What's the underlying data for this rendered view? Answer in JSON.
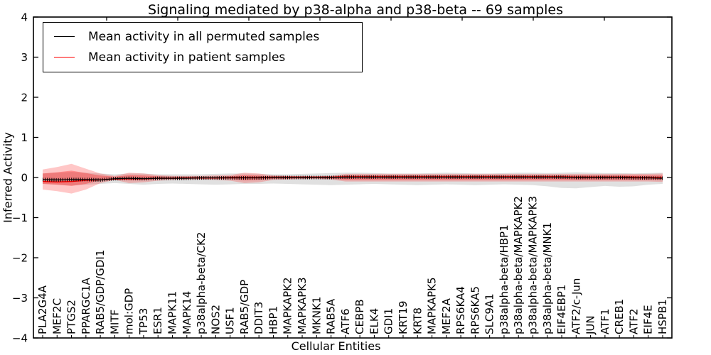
{
  "title": "Signaling mediated by p38-alpha and p38-beta -- 69 samples",
  "legend": [
    {
      "label": "Mean activity in all permuted samples",
      "color": "#000000"
    },
    {
      "label": "Mean activity in patient samples",
      "color": "#ff0000"
    }
  ],
  "colors": {
    "permuted_line": "#000000",
    "patient_line": "#ff0000",
    "patient_band": "#ff0000",
    "permuted_band": "#999999",
    "frame": "#000000"
  },
  "chart_data": {
    "type": "area",
    "title": "Signaling mediated by p38-alpha and p38-beta -- 69 samples",
    "xlabel": "Cellular Entities",
    "ylabel": "Inferred Activity",
    "ylim": [
      -4,
      4
    ],
    "grid": false,
    "legend_position": "upper left",
    "yticks": [
      {
        "v": 4,
        "label": "4"
      },
      {
        "v": 3,
        "label": "3"
      },
      {
        "v": 2,
        "label": "2"
      },
      {
        "v": 1,
        "label": "1"
      },
      {
        "v": 0,
        "label": "0"
      },
      {
        "v": -1,
        "label": "−1"
      },
      {
        "v": -2,
        "label": "−2"
      },
      {
        "v": -3,
        "label": "−3"
      },
      {
        "v": -4,
        "label": "−4"
      }
    ],
    "categories": [
      "PLA2G4A",
      "MEF2C",
      "PTGS2",
      "PPARGC1A",
      "RAB5/GDP/GDI1",
      "MITF",
      "mol:GDP",
      "TP53",
      "ESR1",
      "MAPK11",
      "MAPK14",
      "p38alpha-beta/CK2",
      "NOS2",
      "USF1",
      "RAB5/GDP",
      "DDIT3",
      "HBP1",
      "MAPKAPK2",
      "MAPKAPK3",
      "MKNK1",
      "RAB5A",
      "ATF6",
      "CEBPB",
      "ELK4",
      "GDI1",
      "KRT19",
      "KRT8",
      "MAPKAPK5",
      "MEF2A",
      "RPS6KA4",
      "RPS6KA5",
      "SLC9A1",
      "p38alpha-beta/HBP1",
      "p38alpha-beta/MAPKAPK2",
      "p38alpha-beta/MAPKAPK3",
      "p38alpha-beta/MNK1",
      "EIF4EBP1",
      "ATF2/c-Jun",
      "JUN",
      "ATF1",
      "CREB1",
      "ATF2",
      "EIF4E",
      "HSPB1"
    ],
    "series": [
      {
        "name": "Mean activity in all permuted samples",
        "kind": "line",
        "color": "#000000",
        "width": 1.2,
        "markers": true,
        "values": [
          -0.05,
          -0.06,
          -0.05,
          -0.05,
          -0.06,
          -0.03,
          -0.02,
          -0.03,
          -0.02,
          -0.02,
          -0.02,
          -0.01,
          -0.01,
          -0.01,
          -0.01,
          -0.01,
          0,
          0,
          0,
          0,
          0,
          0.01,
          0.01,
          0.01,
          0.01,
          0.01,
          0.01,
          0.01,
          0.01,
          0.01,
          0.01,
          0.01,
          0.01,
          0.01,
          0.01,
          0.01,
          0.01,
          0,
          0,
          0,
          0,
          -0.01,
          -0.01,
          -0.02
        ]
      },
      {
        "name": "Mean activity in patient samples",
        "kind": "line",
        "color": "#ff0000",
        "width": 1.5,
        "markers": false,
        "values": [
          -0.1,
          -0.11,
          -0.1,
          -0.07,
          -0.06,
          -0.04,
          -0.03,
          -0.03,
          -0.02,
          -0.02,
          -0.01,
          -0.01,
          -0.01,
          0,
          0,
          0,
          0.01,
          0.01,
          0.01,
          0.01,
          0.01,
          0.02,
          0.02,
          0.02,
          0.02,
          0.02,
          0.02,
          0.02,
          0.02,
          0.02,
          0.02,
          0.02,
          0.02,
          0.02,
          0.02,
          0.02,
          0.02,
          0.01,
          0.01,
          0.01,
          0.01,
          0.01,
          0,
          0
        ]
      },
      {
        "name": "permuted-sample-range",
        "kind": "band",
        "color": "#999999",
        "opacity": 0.3,
        "upper": [
          0.1,
          0.12,
          0.14,
          0.12,
          0.1,
          0.08,
          0.1,
          0.1,
          0.08,
          0.08,
          0.08,
          0.08,
          0.09,
          0.1,
          0.1,
          0.09,
          0.08,
          0.08,
          0.09,
          0.1,
          0.11,
          0.12,
          0.12,
          0.11,
          0.1,
          0.1,
          0.1,
          0.11,
          0.12,
          0.11,
          0.1,
          0.1,
          0.11,
          0.12,
          0.12,
          0.11,
          0.12,
          0.13,
          0.12,
          0.11,
          0.11,
          0.1,
          0.11,
          0.12
        ],
        "lower": [
          -0.16,
          -0.18,
          -0.2,
          -0.18,
          -0.16,
          -0.14,
          -0.16,
          -0.18,
          -0.16,
          -0.15,
          -0.16,
          -0.17,
          -0.18,
          -0.17,
          -0.16,
          -0.16,
          -0.15,
          -0.16,
          -0.17,
          -0.18,
          -0.19,
          -0.18,
          -0.17,
          -0.16,
          -0.17,
          -0.18,
          -0.19,
          -0.18,
          -0.17,
          -0.18,
          -0.19,
          -0.18,
          -0.17,
          -0.18,
          -0.19,
          -0.22,
          -0.26,
          -0.27,
          -0.24,
          -0.21,
          -0.23,
          -0.22,
          -0.18,
          -0.16
        ]
      },
      {
        "name": "patient-sample-range",
        "kind": "band",
        "color": "#ff0000",
        "opacity": 0.22,
        "upper": [
          0.2,
          0.26,
          0.34,
          0.22,
          0.1,
          0.04,
          0.12,
          0.1,
          0.06,
          0.04,
          0.04,
          0.04,
          0.05,
          0.06,
          0.12,
          0.1,
          0.05,
          0.04,
          0.03,
          0.03,
          0.04,
          0.09,
          0.09,
          0.09,
          0.09,
          0.09,
          0.09,
          0.09,
          0.09,
          0.09,
          0.09,
          0.09,
          0.09,
          0.09,
          0.09,
          0.09,
          0.09,
          0.09,
          0.09,
          0.09,
          0.09,
          0.09,
          0.09,
          0.1
        ],
        "lower": [
          -0.3,
          -0.34,
          -0.4,
          -0.3,
          -0.14,
          -0.06,
          -0.14,
          -0.12,
          -0.08,
          -0.06,
          -0.05,
          -0.05,
          -0.06,
          -0.08,
          -0.14,
          -0.12,
          -0.06,
          -0.05,
          -0.04,
          -0.04,
          -0.05,
          -0.1,
          -0.1,
          -0.1,
          -0.1,
          -0.1,
          -0.1,
          -0.1,
          -0.1,
          -0.1,
          -0.1,
          -0.1,
          -0.1,
          -0.1,
          -0.1,
          -0.1,
          -0.1,
          -0.1,
          -0.1,
          -0.1,
          -0.1,
          -0.1,
          -0.1,
          -0.11
        ]
      },
      {
        "name": "patient-sample-inner-band",
        "kind": "band",
        "color": "#ff0000",
        "opacity": 0.3,
        "upper": [
          0.1,
          0.13,
          0.17,
          0.11,
          0.05,
          0.02,
          0.06,
          0.05,
          0.03,
          0.02,
          0.02,
          0.02,
          0.02,
          0.03,
          0.06,
          0.05,
          0.02,
          0.02,
          0.02,
          0.02,
          0.02,
          0.05,
          0.05,
          0.05,
          0.05,
          0.05,
          0.05,
          0.05,
          0.05,
          0.05,
          0.05,
          0.05,
          0.05,
          0.05,
          0.05,
          0.05,
          0.05,
          0.05,
          0.05,
          0.05,
          0.05,
          0.05,
          0.05,
          0.05
        ],
        "lower": [
          -0.16,
          -0.18,
          -0.21,
          -0.16,
          -0.07,
          -0.03,
          -0.07,
          -0.06,
          -0.04,
          -0.03,
          -0.03,
          -0.03,
          -0.03,
          -0.04,
          -0.07,
          -0.06,
          -0.03,
          -0.03,
          -0.02,
          -0.02,
          -0.03,
          -0.06,
          -0.06,
          -0.06,
          -0.06,
          -0.06,
          -0.06,
          -0.06,
          -0.06,
          -0.06,
          -0.06,
          -0.06,
          -0.06,
          -0.06,
          -0.06,
          -0.06,
          -0.06,
          -0.06,
          -0.06,
          -0.06,
          -0.06,
          -0.06,
          -0.06,
          -0.06
        ]
      }
    ]
  }
}
